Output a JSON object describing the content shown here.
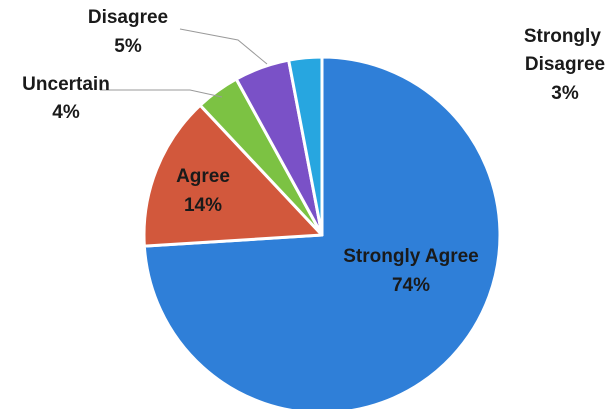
{
  "chart_data": {
    "type": "pie",
    "start_angle_deg": 0,
    "direction": "clockwise",
    "slices": [
      {
        "label": "Strongly Agree",
        "value": 74,
        "value_label": "74%",
        "color": "#2f7fd8"
      },
      {
        "label": "Agree",
        "value": 14,
        "value_label": "14%",
        "color": "#d2583c"
      },
      {
        "label": "Uncertain",
        "value": 4,
        "value_label": "4%",
        "color": "#7cc243"
      },
      {
        "label": "Disagree",
        "value": 5,
        "value_label": "5%",
        "color": "#7a51c7"
      },
      {
        "label": "Strongly Disagree",
        "value": 3,
        "value_label": "3%",
        "color": "#27a6e0"
      }
    ]
  }
}
